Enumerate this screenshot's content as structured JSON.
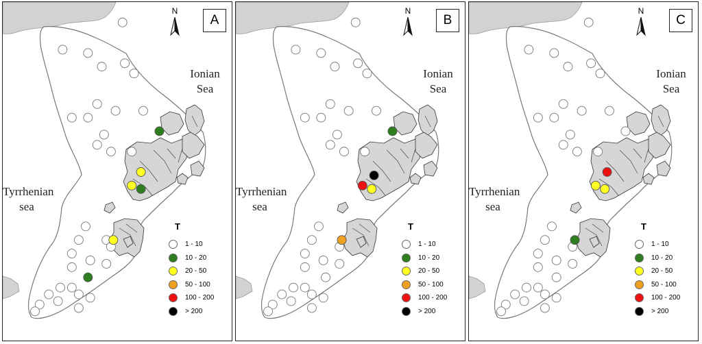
{
  "panels": [
    {
      "label": "A",
      "points": [
        {
          "c": 0,
          "x": 0.52,
          "y": 0.06
        },
        {
          "c": 0,
          "x": 0.26,
          "y": 0.14
        },
        {
          "c": 0,
          "x": 0.37,
          "y": 0.15
        },
        {
          "c": 0,
          "x": 0.43,
          "y": 0.19
        },
        {
          "c": 0,
          "x": 0.53,
          "y": 0.18
        },
        {
          "c": 0,
          "x": 0.57,
          "y": 0.21
        },
        {
          "c": 0,
          "x": 0.3,
          "y": 0.34
        },
        {
          "c": 0,
          "x": 0.37,
          "y": 0.34
        },
        {
          "c": 0,
          "x": 0.41,
          "y": 0.3
        },
        {
          "c": 0,
          "x": 0.49,
          "y": 0.32
        },
        {
          "c": 0,
          "x": 0.61,
          "y": 0.32
        },
        {
          "c": 0,
          "x": 0.44,
          "y": 0.39
        },
        {
          "c": 0,
          "x": 0.41,
          "y": 0.42
        },
        {
          "c": 0,
          "x": 0.47,
          "y": 0.44
        },
        {
          "c": 0,
          "x": 0.56,
          "y": 0.44
        },
        {
          "c": 0,
          "x": 0.36,
          "y": 0.66
        },
        {
          "c": 0,
          "x": 0.33,
          "y": 0.7
        },
        {
          "c": 0,
          "x": 0.3,
          "y": 0.74
        },
        {
          "c": 0,
          "x": 0.45,
          "y": 0.7
        },
        {
          "c": 0,
          "x": 0.38,
          "y": 0.76
        },
        {
          "c": 0,
          "x": 0.3,
          "y": 0.78
        },
        {
          "c": 0,
          "x": 0.3,
          "y": 0.84
        },
        {
          "c": 0,
          "x": 0.25,
          "y": 0.84
        },
        {
          "c": 0,
          "x": 0.33,
          "y": 0.86
        },
        {
          "c": 0,
          "x": 0.24,
          "y": 0.88
        },
        {
          "c": 0,
          "x": 0.16,
          "y": 0.89
        },
        {
          "c": 0,
          "x": 0.2,
          "y": 0.86
        },
        {
          "c": 0,
          "x": 0.14,
          "y": 0.91
        },
        {
          "c": 0,
          "x": 0.38,
          "y": 0.87
        },
        {
          "c": 0,
          "x": 0.33,
          "y": 0.9
        },
        {
          "c": 0,
          "x": 0.45,
          "y": 0.77
        },
        {
          "c": 0,
          "x": 0.47,
          "y": 0.72
        },
        {
          "c": 1,
          "x": 0.68,
          "y": 0.38
        },
        {
          "c": 2,
          "x": 0.6,
          "y": 0.5
        },
        {
          "c": 2,
          "x": 0.56,
          "y": 0.54
        },
        {
          "c": 1,
          "x": 0.6,
          "y": 0.55
        },
        {
          "c": 2,
          "x": 0.48,
          "y": 0.7
        },
        {
          "c": 1,
          "x": 0.37,
          "y": 0.81
        }
      ]
    },
    {
      "label": "B",
      "points": [
        {
          "c": 0,
          "x": 0.52,
          "y": 0.06
        },
        {
          "c": 0,
          "x": 0.26,
          "y": 0.14
        },
        {
          "c": 0,
          "x": 0.37,
          "y": 0.15
        },
        {
          "c": 0,
          "x": 0.43,
          "y": 0.19
        },
        {
          "c": 0,
          "x": 0.53,
          "y": 0.18
        },
        {
          "c": 0,
          "x": 0.57,
          "y": 0.21
        },
        {
          "c": 0,
          "x": 0.3,
          "y": 0.34
        },
        {
          "c": 0,
          "x": 0.37,
          "y": 0.34
        },
        {
          "c": 0,
          "x": 0.41,
          "y": 0.3
        },
        {
          "c": 0,
          "x": 0.49,
          "y": 0.32
        },
        {
          "c": 0,
          "x": 0.61,
          "y": 0.32
        },
        {
          "c": 0,
          "x": 0.44,
          "y": 0.39
        },
        {
          "c": 0,
          "x": 0.41,
          "y": 0.42
        },
        {
          "c": 0,
          "x": 0.47,
          "y": 0.44
        },
        {
          "c": 0,
          "x": 0.56,
          "y": 0.44
        },
        {
          "c": 0,
          "x": 0.36,
          "y": 0.66
        },
        {
          "c": 0,
          "x": 0.33,
          "y": 0.7
        },
        {
          "c": 0,
          "x": 0.3,
          "y": 0.74
        },
        {
          "c": 0,
          "x": 0.45,
          "y": 0.72
        },
        {
          "c": 0,
          "x": 0.38,
          "y": 0.76
        },
        {
          "c": 0,
          "x": 0.3,
          "y": 0.78
        },
        {
          "c": 0,
          "x": 0.3,
          "y": 0.84
        },
        {
          "c": 0,
          "x": 0.25,
          "y": 0.84
        },
        {
          "c": 0,
          "x": 0.33,
          "y": 0.86
        },
        {
          "c": 0,
          "x": 0.24,
          "y": 0.88
        },
        {
          "c": 0,
          "x": 0.16,
          "y": 0.89
        },
        {
          "c": 0,
          "x": 0.2,
          "y": 0.86
        },
        {
          "c": 0,
          "x": 0.14,
          "y": 0.91
        },
        {
          "c": 0,
          "x": 0.38,
          "y": 0.87
        },
        {
          "c": 0,
          "x": 0.33,
          "y": 0.9
        },
        {
          "c": 0,
          "x": 0.45,
          "y": 0.77
        },
        {
          "c": 0,
          "x": 0.39,
          "y": 0.81
        },
        {
          "c": 1,
          "x": 0.68,
          "y": 0.38
        },
        {
          "c": 5,
          "x": 0.6,
          "y": 0.51
        },
        {
          "c": 4,
          "x": 0.55,
          "y": 0.54
        },
        {
          "c": 2,
          "x": 0.59,
          "y": 0.55
        },
        {
          "c": 3,
          "x": 0.46,
          "y": 0.7
        }
      ]
    },
    {
      "label": "C",
      "points": [
        {
          "c": 0,
          "x": 0.52,
          "y": 0.06
        },
        {
          "c": 0,
          "x": 0.26,
          "y": 0.14
        },
        {
          "c": 0,
          "x": 0.37,
          "y": 0.15
        },
        {
          "c": 0,
          "x": 0.43,
          "y": 0.19
        },
        {
          "c": 0,
          "x": 0.53,
          "y": 0.18
        },
        {
          "c": 0,
          "x": 0.57,
          "y": 0.21
        },
        {
          "c": 0,
          "x": 0.3,
          "y": 0.34
        },
        {
          "c": 0,
          "x": 0.37,
          "y": 0.34
        },
        {
          "c": 0,
          "x": 0.41,
          "y": 0.3
        },
        {
          "c": 0,
          "x": 0.49,
          "y": 0.32
        },
        {
          "c": 0,
          "x": 0.61,
          "y": 0.32
        },
        {
          "c": 0,
          "x": 0.44,
          "y": 0.39
        },
        {
          "c": 0,
          "x": 0.41,
          "y": 0.42
        },
        {
          "c": 0,
          "x": 0.47,
          "y": 0.44
        },
        {
          "c": 0,
          "x": 0.56,
          "y": 0.44
        },
        {
          "c": 0,
          "x": 0.68,
          "y": 0.38
        },
        {
          "c": 0,
          "x": 0.36,
          "y": 0.66
        },
        {
          "c": 0,
          "x": 0.33,
          "y": 0.7
        },
        {
          "c": 0,
          "x": 0.3,
          "y": 0.74
        },
        {
          "c": 0,
          "x": 0.45,
          "y": 0.72
        },
        {
          "c": 0,
          "x": 0.38,
          "y": 0.76
        },
        {
          "c": 0,
          "x": 0.3,
          "y": 0.78
        },
        {
          "c": 0,
          "x": 0.3,
          "y": 0.84
        },
        {
          "c": 0,
          "x": 0.25,
          "y": 0.84
        },
        {
          "c": 0,
          "x": 0.33,
          "y": 0.86
        },
        {
          "c": 0,
          "x": 0.24,
          "y": 0.88
        },
        {
          "c": 0,
          "x": 0.16,
          "y": 0.89
        },
        {
          "c": 0,
          "x": 0.2,
          "y": 0.86
        },
        {
          "c": 0,
          "x": 0.14,
          "y": 0.91
        },
        {
          "c": 0,
          "x": 0.38,
          "y": 0.87
        },
        {
          "c": 0,
          "x": 0.33,
          "y": 0.9
        },
        {
          "c": 0,
          "x": 0.45,
          "y": 0.77
        },
        {
          "c": 0,
          "x": 0.38,
          "y": 0.81
        },
        {
          "c": 4,
          "x": 0.6,
          "y": 0.5
        },
        {
          "c": 2,
          "x": 0.55,
          "y": 0.54
        },
        {
          "c": 2,
          "x": 0.59,
          "y": 0.55
        },
        {
          "c": 1,
          "x": 0.46,
          "y": 0.7
        }
      ]
    }
  ],
  "north_label": "N",
  "seas": {
    "ionian": [
      "Ionian",
      "Sea"
    ],
    "tyrrhenian": [
      "Tyrrhenian",
      "sea"
    ]
  },
  "legend": {
    "title": "T",
    "items": [
      {
        "label": "1 - 10",
        "color": "#ffffff"
      },
      {
        "label": "10 - 20",
        "color": "#2e7d1e"
      },
      {
        "label": "20 - 50",
        "color": "#ffff22"
      },
      {
        "label": "50 - 100",
        "color": "#f0a020"
      },
      {
        "label": "100 - 200",
        "color": "#ee1111"
      },
      {
        "label": "> 200",
        "color": "#000000"
      }
    ]
  }
}
